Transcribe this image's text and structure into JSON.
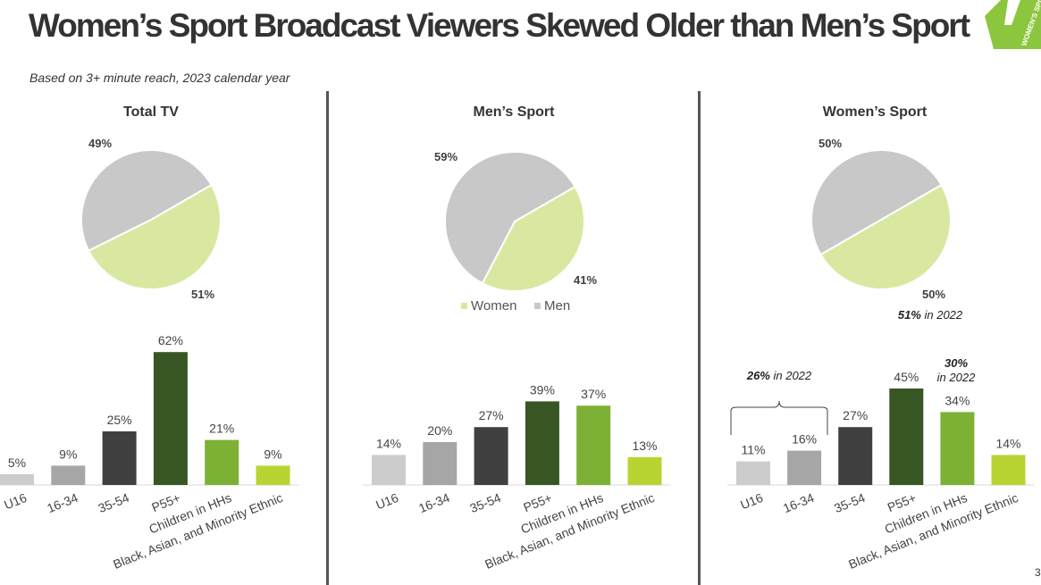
{
  "header": {
    "title": "Women’s Sport Broadcast Viewers Skewed Older than Men’s Sport",
    "subtitle": "Based on 3+ minute reach, 2023 calendar year",
    "logo_text": "WOMEN'S SPORT",
    "page_number": "3"
  },
  "colors": {
    "women": "#d9e8a0",
    "men": "#c8c8c8",
    "bars": [
      "#cccccc",
      "#a6a6a6",
      "#404040",
      "#375623",
      "#7db135",
      "#b8d432"
    ],
    "logo": "#8cc63f"
  },
  "chart_data": [
    {
      "type": "pie",
      "panel": "Total TV",
      "title": "Total TV",
      "slices": [
        {
          "label": "Women",
          "value": 51,
          "label_text": "51%"
        },
        {
          "label": "Men",
          "value": 49,
          "label_text": "49%"
        }
      ]
    },
    {
      "type": "bar",
      "panel": "Total TV",
      "categories": [
        "U16",
        "16-34",
        "35-54",
        "P55+",
        "Children in HHs",
        "Black, Asian, and Minority Ethnic"
      ],
      "values": [
        5,
        9,
        25,
        62,
        21,
        9
      ],
      "value_labels": [
        "5%",
        "9%",
        "25%",
        "62%",
        "21%",
        "9%"
      ]
    },
    {
      "type": "pie",
      "panel": "Men's Sport",
      "title": "Men’s Sport",
      "slices": [
        {
          "label": "Women",
          "value": 41,
          "label_text": "41%"
        },
        {
          "label": "Men",
          "value": 59,
          "label_text": "59%"
        }
      ],
      "legend": [
        "Women",
        "Men"
      ],
      "legend_position": "bottom"
    },
    {
      "type": "bar",
      "panel": "Men's Sport",
      "categories": [
        "U16",
        "16-34",
        "35-54",
        "P55+",
        "Children in HHs",
        "Black, Asian, and Minority Ethnic"
      ],
      "values": [
        14,
        20,
        27,
        39,
        37,
        13
      ],
      "value_labels": [
        "14%",
        "20%",
        "27%",
        "39%",
        "37%",
        "13%"
      ]
    },
    {
      "type": "pie",
      "panel": "Women's Sport",
      "title": "Women’s Sport",
      "slices": [
        {
          "label": "Women",
          "value": 50,
          "label_text": "50%"
        },
        {
          "label": "Men",
          "value": 50,
          "label_text": "50%"
        }
      ],
      "annotation": {
        "bold": "51%",
        "text": " in 2022"
      }
    },
    {
      "type": "bar",
      "panel": "Women's Sport",
      "categories": [
        "U16",
        "16-34",
        "35-54",
        "P55+",
        "Children in HHs",
        "Black, Asian, and Minority Ethnic"
      ],
      "values": [
        11,
        16,
        27,
        45,
        34,
        14
      ],
      "value_labels": [
        "11%",
        "16%",
        "27%",
        "45%",
        "34%",
        "14%"
      ],
      "annotations": [
        {
          "bold": "26%",
          "text": " in 2022",
          "applies_to": [
            "U16",
            "16-34"
          ]
        },
        {
          "bold": "30%",
          "text": "in 2022",
          "applies_to": [
            "Children in HHs"
          ]
        }
      ]
    }
  ]
}
